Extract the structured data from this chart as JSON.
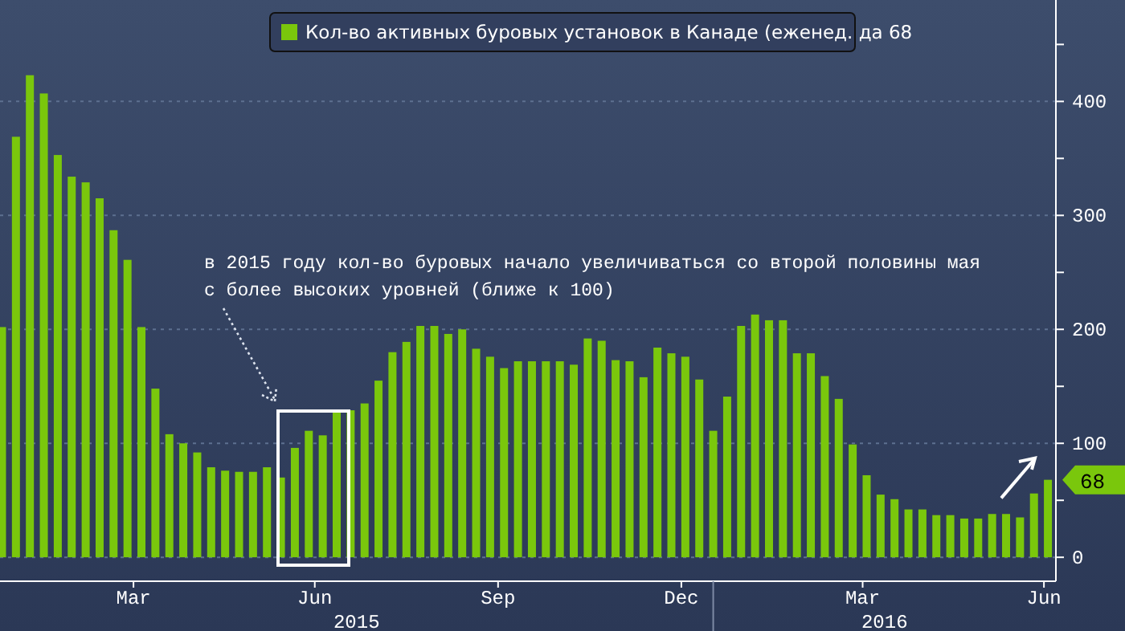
{
  "chart_data": {
    "type": "bar",
    "x": [
      "2015-01-09",
      "2015-01-16",
      "2015-01-23",
      "2015-01-30",
      "2015-02-06",
      "2015-02-13",
      "2015-02-20",
      "2015-02-27",
      "2015-03-06",
      "2015-03-13",
      "2015-03-20",
      "2015-03-27",
      "2015-04-03",
      "2015-04-10",
      "2015-04-17",
      "2015-04-24",
      "2015-05-01",
      "2015-05-08",
      "2015-05-15",
      "2015-05-22",
      "2015-05-29",
      "2015-06-05",
      "2015-06-12",
      "2015-06-19",
      "2015-06-26",
      "2015-07-03",
      "2015-07-10",
      "2015-07-17",
      "2015-07-24",
      "2015-07-31",
      "2015-08-07",
      "2015-08-14",
      "2015-08-21",
      "2015-08-28",
      "2015-09-04",
      "2015-09-11",
      "2015-09-18",
      "2015-09-25",
      "2015-10-02",
      "2015-10-09",
      "2015-10-16",
      "2015-10-23",
      "2015-10-30",
      "2015-11-06",
      "2015-11-13",
      "2015-11-20",
      "2015-11-27",
      "2015-12-04",
      "2015-12-11",
      "2015-12-18",
      "2015-12-25",
      "2016-01-01",
      "2016-01-08",
      "2016-01-15",
      "2016-01-22",
      "2016-01-29",
      "2016-02-05",
      "2016-02-12",
      "2016-02-19",
      "2016-02-26",
      "2016-03-04",
      "2016-03-11",
      "2016-03-18",
      "2016-03-25",
      "2016-04-01",
      "2016-04-08",
      "2016-04-15",
      "2016-04-22",
      "2016-04-29",
      "2016-05-06",
      "2016-05-13",
      "2016-05-20",
      "2016-05-27",
      "2016-06-03",
      "2016-06-10",
      "2016-06-17"
    ],
    "series": [
      {
        "name": "Кол-во активных буровых установок в Канаде (еженед. да 68",
        "color": "#7ac70c",
        "values": [
          202,
          369,
          423,
          407,
          353,
          334,
          329,
          315,
          287,
          261,
          202,
          148,
          108,
          100,
          92,
          79,
          76,
          75,
          75,
          79,
          70,
          96,
          111,
          107,
          127,
          129,
          135,
          155,
          180,
          189,
          203,
          203,
          196,
          200,
          183,
          176,
          166,
          172,
          172,
          172,
          172,
          169,
          192,
          190,
          173,
          172,
          158,
          184,
          179,
          176,
          156,
          111,
          141,
          203,
          213,
          208,
          208,
          179,
          179,
          159,
          139,
          99,
          72,
          55,
          51,
          42,
          42,
          37,
          37,
          34,
          34,
          38,
          38,
          35,
          56,
          68
        ]
      }
    ],
    "xlim": [
      "2015-01-08",
      "2016-06-21"
    ],
    "xticks": [
      {
        "value": "2015-03-16",
        "label": "Mar"
      },
      {
        "value": "2015-06-15",
        "label": "Jun"
      },
      {
        "value": "2015-09-15",
        "label": "Sep"
      },
      {
        "value": "2015-12-16",
        "label": "Dec"
      },
      {
        "value": "2016-03-16",
        "label": "Mar"
      },
      {
        "value": "2016-06-15",
        "label": "Jun"
      }
    ],
    "ylim": [
      -21,
      489
    ],
    "yticks": [
      0,
      {
        "value": 50,
        "label": null
      },
      100,
      {
        "value": 150,
        "label": null
      },
      200,
      {
        "value": 250,
        "label": null
      },
      300,
      {
        "value": 350,
        "label": null
      },
      400,
      {
        "value": 450,
        "label": null
      }
    ],
    "grid": "y",
    "legend": "top",
    "annotations": [
      "в 2015 году кол-во буровых начало увеличиваться со второй половины мая\nс более высоких уровней (ближе к 100)",
      "2015",
      "2016",
      "68"
    ]
  }
}
